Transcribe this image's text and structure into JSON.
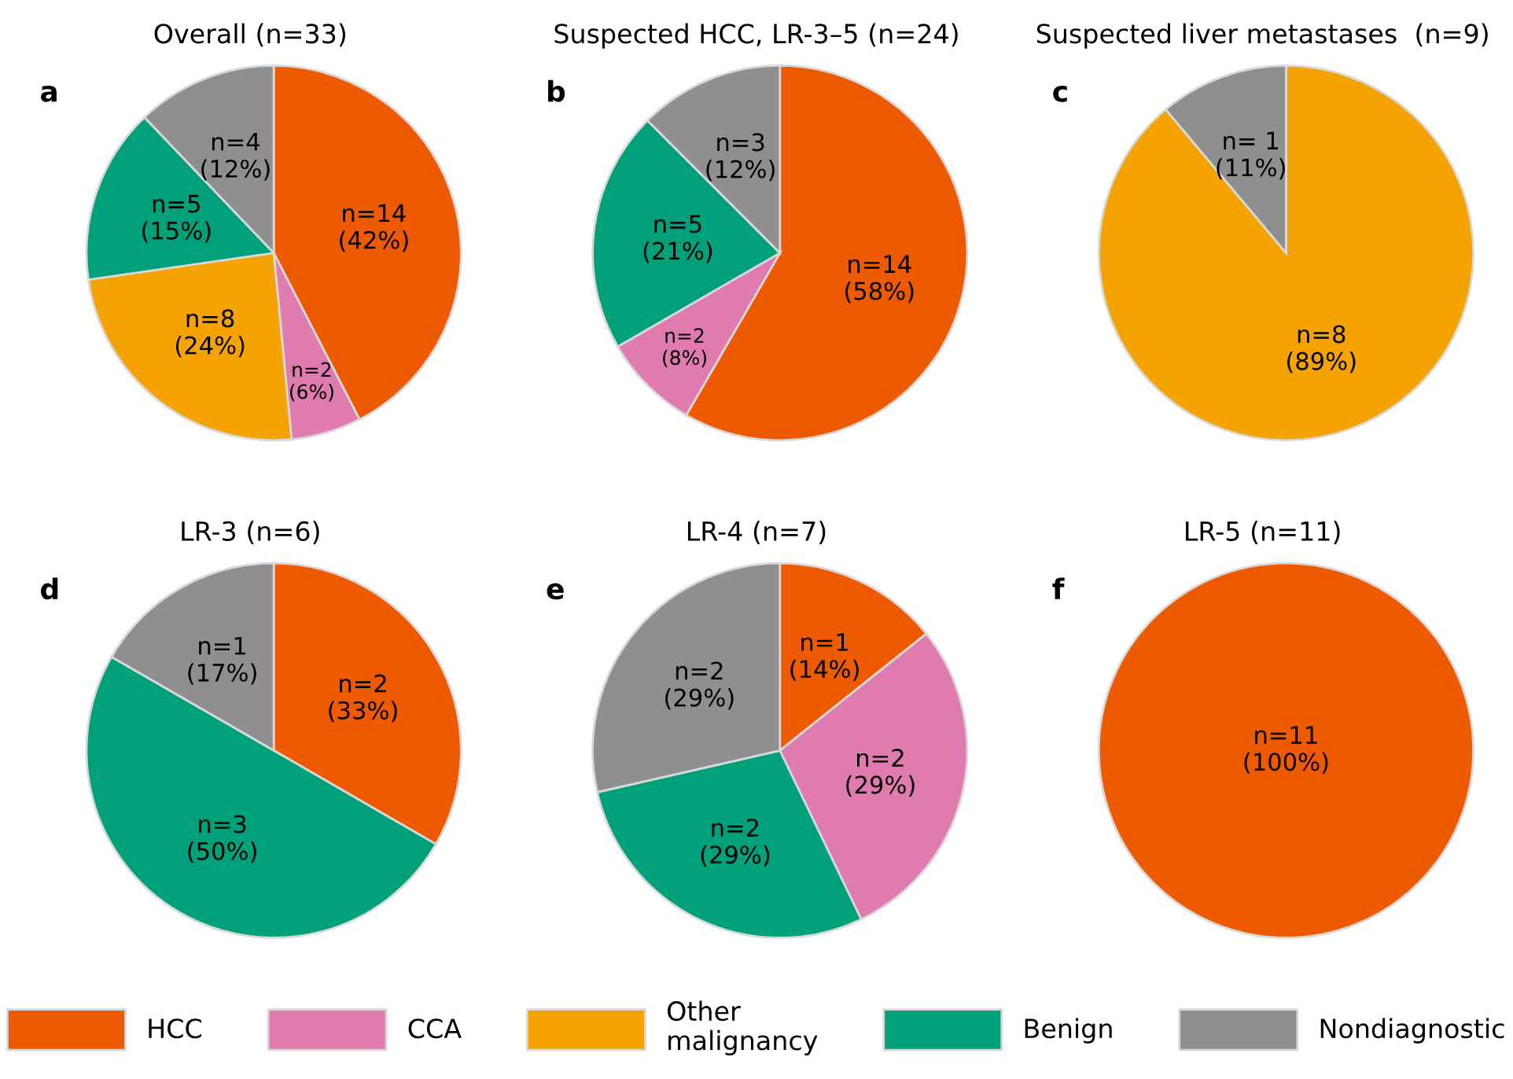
{
  "chart_data": [
    {
      "type": "pie",
      "title": "Overall (n=33)",
      "annotations": [
        "a"
      ],
      "legend": "bottom",
      "categories": [
        "HCC",
        "CCA",
        "Other\nmalignancy",
        "Benign",
        "Nondiagnostic"
      ],
      "values": [
        14,
        2,
        8,
        5,
        4
      ],
      "colors": [
        "#ee5a00",
        "#e07bb0",
        "#f5a300",
        "#00a07a",
        "#8f8f8f"
      ],
      "value_labels": [
        "n=14\n(42%)",
        "n=2\n(6%)",
        "n=8\n(24%)",
        "n=5\n(15%)",
        "n=4\n(12%)"
      ]
    },
    {
      "type": "pie",
      "title": "Suspected HCC, LR-3–5 (n=24)",
      "annotations": [
        "b"
      ],
      "categories": [
        null,
        null,
        null,
        null
      ],
      "values": [
        14,
        2,
        5,
        3
      ],
      "colors": [
        "#ee5a00",
        "#e07bb0",
        "#00a07a",
        "#8f8f8f"
      ],
      "value_labels": [
        "n=14\n(58%)",
        "n=2\n(8%)",
        "n=5\n(21%)",
        "n=3\n(12%)"
      ]
    },
    {
      "type": "pie",
      "title": "Suspected liver metastases  (n=9)",
      "annotations": [
        "c"
      ],
      "categories": [
        null,
        null
      ],
      "values": [
        8,
        1
      ],
      "colors": [
        "#f5a300",
        "#8f8f8f"
      ],
      "value_labels": [
        "n=8\n(89%)",
        "n= 1\n(11%)"
      ]
    },
    {
      "type": "pie",
      "title": "LR-3 (n=6)",
      "annotations": [
        "d"
      ],
      "categories": [
        null,
        null,
        null
      ],
      "values": [
        2,
        3,
        1
      ],
      "colors": [
        "#ee5a00",
        "#00a07a",
        "#8f8f8f"
      ],
      "value_labels": [
        "n=2\n(33%)",
        "n=3\n(50%)",
        "n=1\n(17%)"
      ]
    },
    {
      "type": "pie",
      "title": "LR-4 (n=7)",
      "annotations": [
        "e"
      ],
      "categories": [
        null,
        null,
        null,
        null
      ],
      "values": [
        1,
        2,
        2,
        2
      ],
      "colors": [
        "#ee5a00",
        "#e07bb0",
        "#00a07a",
        "#8f8f8f"
      ],
      "value_labels": [
        "n=1\n(14%)",
        "n=2\n(29%)",
        "n=2\n(29%)",
        "n=2\n(29%)"
      ]
    },
    {
      "type": "pie",
      "title": "LR-5 (n=11)",
      "annotations": [
        "f"
      ],
      "categories": [
        null
      ],
      "values": [
        11
      ],
      "colors": [
        "#ee5a00"
      ],
      "value_labels": [
        "n=11\n(100%)"
      ]
    }
  ]
}
